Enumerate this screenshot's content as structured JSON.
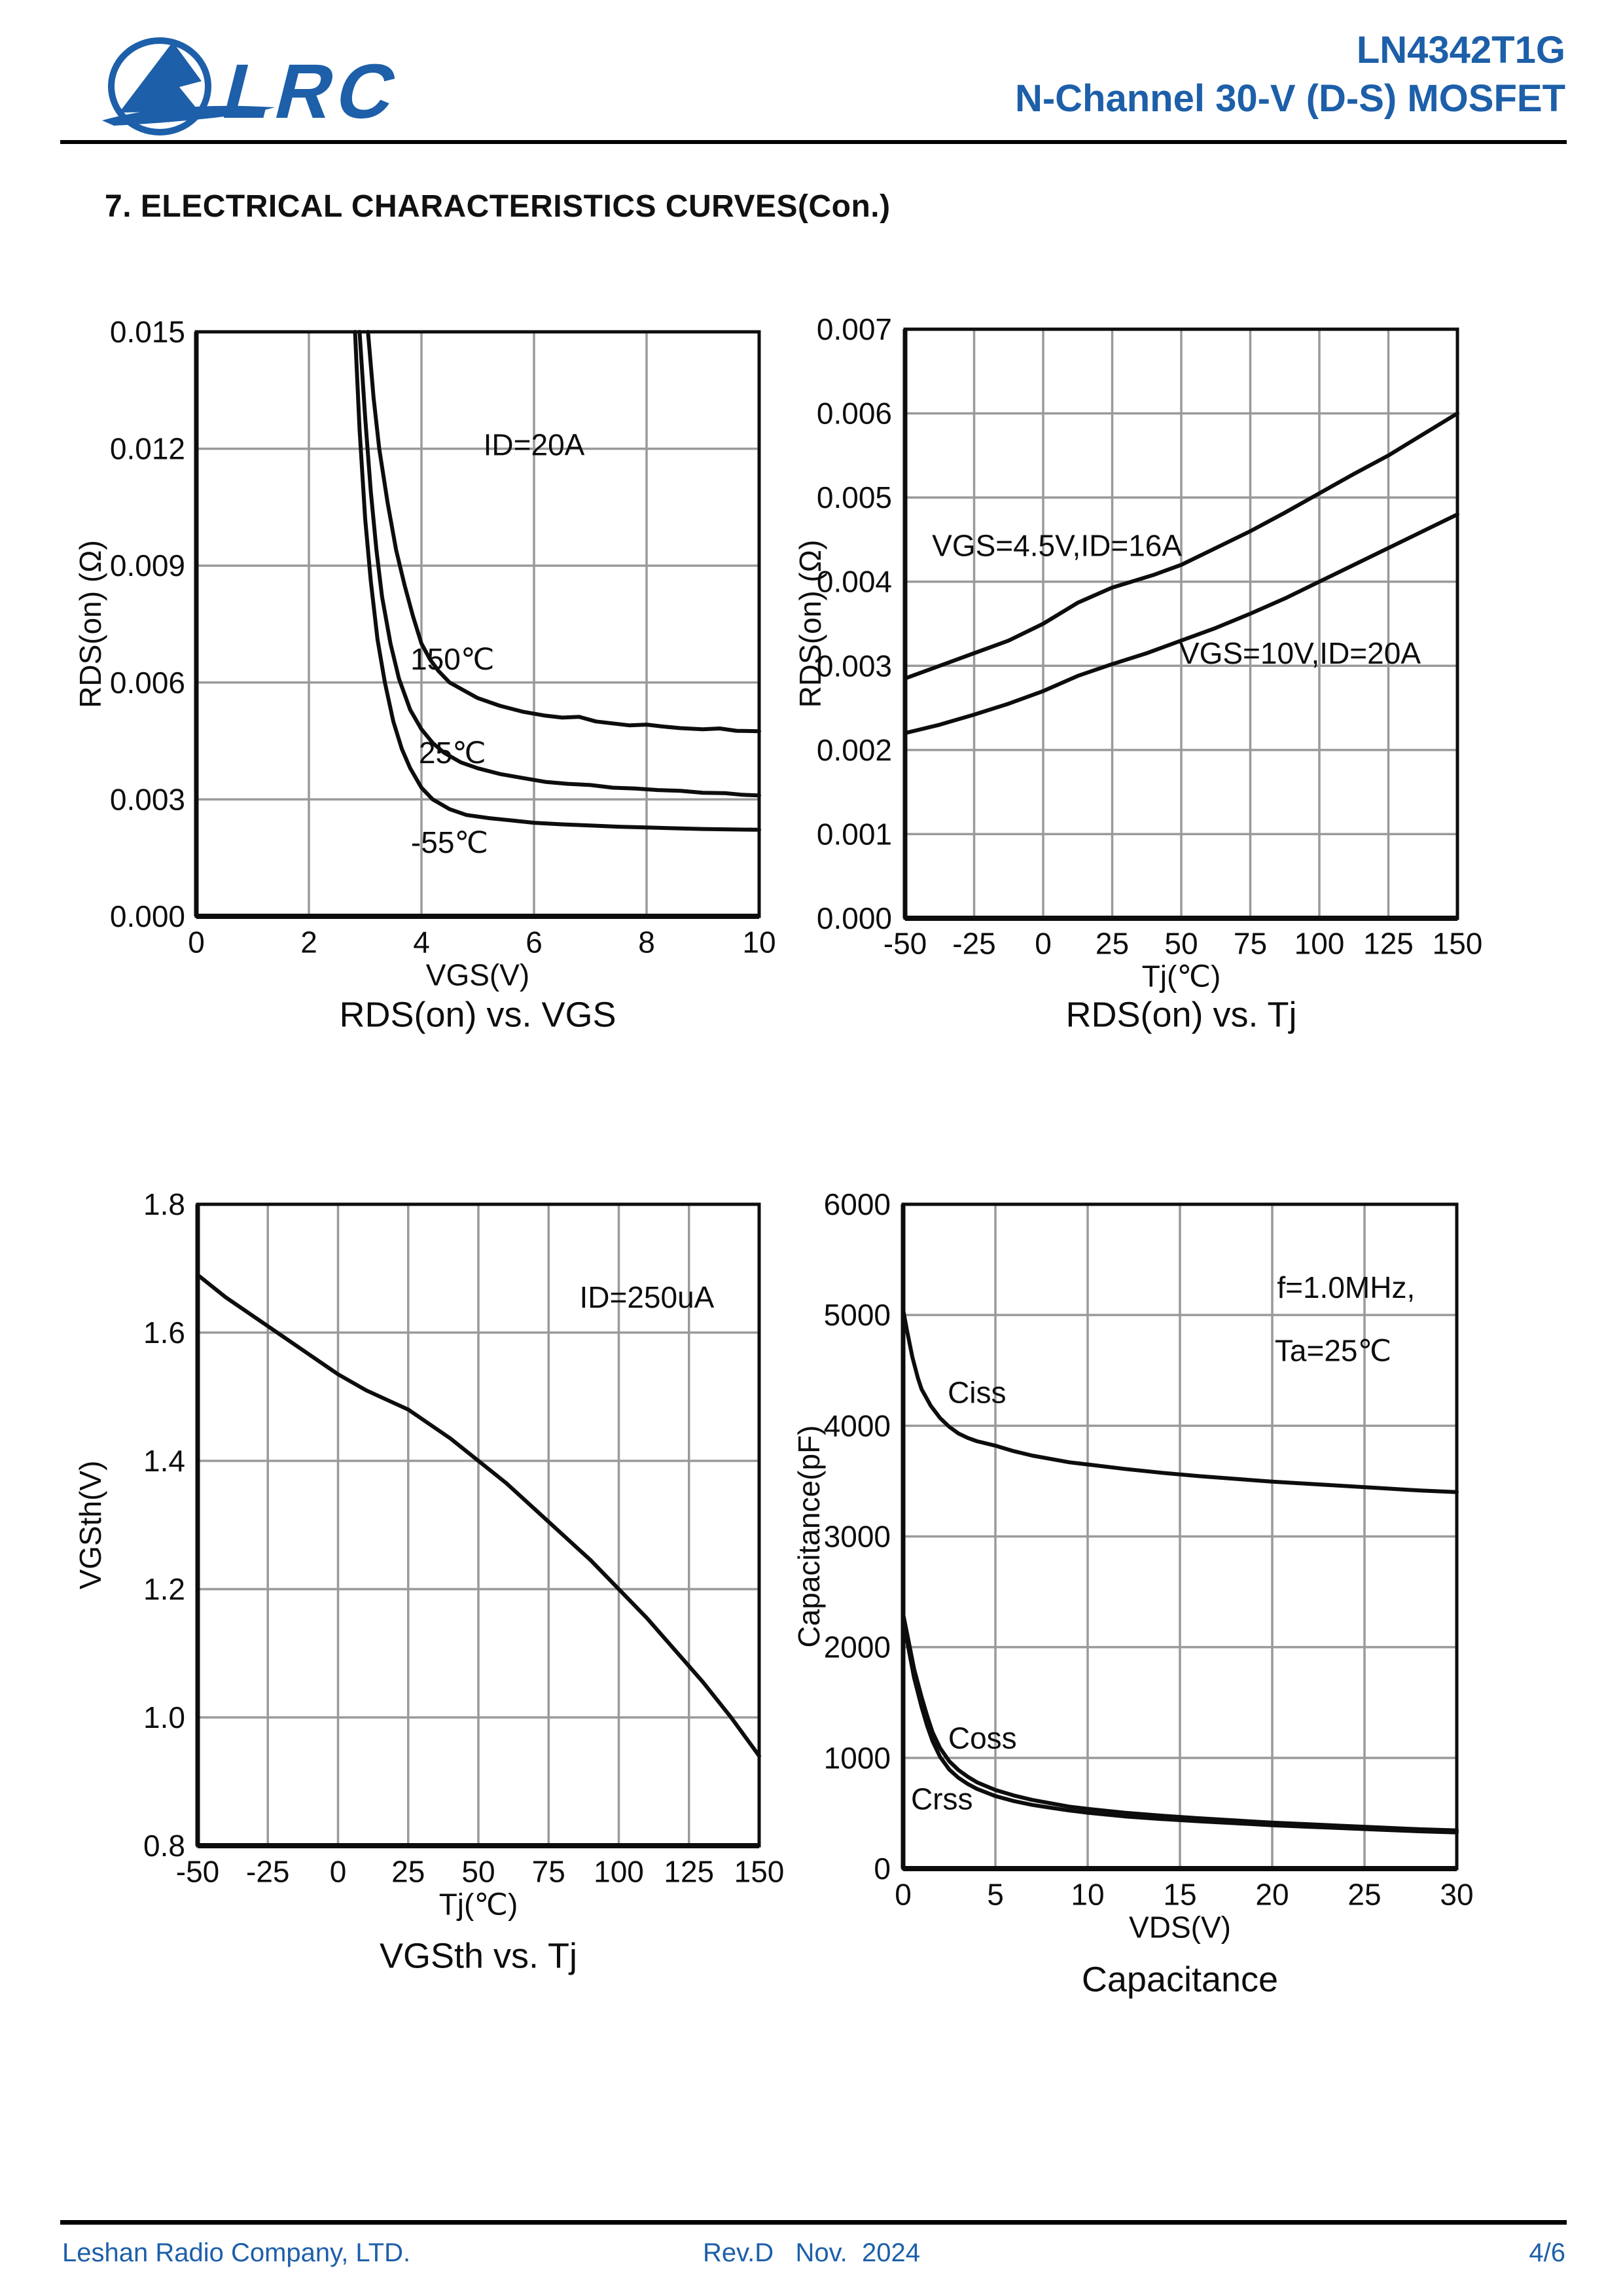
{
  "header": {
    "logo_text": "LRC",
    "part_number": "LN4342T1G",
    "subtitle": "N-Channel 30-V (D-S) MOSFET"
  },
  "section_title": "7. ELECTRICAL CHARACTERISTICS CURVES(Con.)",
  "footer": {
    "company": "Leshan Radio Company, LTD.",
    "revision": "Rev.D   Nov.  2024",
    "page_number": "4/6"
  },
  "colors": {
    "brand_blue": "#1d5fa9",
    "grid_gray": "#9a9a9a",
    "curve_black": "#0d0d0d"
  },
  "chart_data": [
    {
      "id": "rdson-vs-vgs",
      "type": "line",
      "title": "RDS(on) vs. VGS",
      "xlabel": "VGS(V)",
      "ylabel": "RDS(on) (Ω)",
      "xlim": [
        0,
        10
      ],
      "ylim": [
        0,
        0.015
      ],
      "xticks": [
        "0",
        "2",
        "4",
        "6",
        "8",
        "10"
      ],
      "yticks": [
        "0.000",
        "0.003",
        "0.006",
        "0.009",
        "0.012",
        "0.015"
      ],
      "grid": true,
      "annotations": [
        {
          "text": "ID=20A",
          "x": 6.0,
          "y": 0.0121
        },
        {
          "text": "150℃",
          "x": 4.55,
          "y": 0.0066
        },
        {
          "text": "25℃",
          "x": 4.55,
          "y": 0.0042
        },
        {
          "text": "-55℃",
          "x": 4.5,
          "y": 0.0019
        }
      ],
      "series": [
        {
          "name": "150C",
          "points": [
            [
              3.05,
              0.015
            ],
            [
              3.15,
              0.0133
            ],
            [
              3.25,
              0.012
            ],
            [
              3.4,
              0.0106
            ],
            [
              3.55,
              0.0094
            ],
            [
              3.7,
              0.0085
            ],
            [
              3.85,
              0.0077
            ],
            [
              4.0,
              0.007
            ],
            [
              4.15,
              0.0066
            ],
            [
              4.3,
              0.0063
            ],
            [
              4.5,
              0.006
            ],
            [
              4.75,
              0.0058
            ],
            [
              5.0,
              0.0056
            ],
            [
              5.4,
              0.0054
            ],
            [
              5.8,
              0.00525
            ],
            [
              6.2,
              0.00515
            ],
            [
              6.5,
              0.0051
            ],
            [
              6.8,
              0.00512
            ],
            [
              7.1,
              0.005
            ],
            [
              7.4,
              0.00495
            ],
            [
              7.7,
              0.0049
            ],
            [
              8.0,
              0.00492
            ],
            [
              8.3,
              0.00487
            ],
            [
              8.6,
              0.00483
            ],
            [
              9.0,
              0.0048
            ],
            [
              9.3,
              0.00482
            ],
            [
              9.6,
              0.00476
            ],
            [
              10,
              0.00475
            ]
          ]
        },
        {
          "name": "25C",
          "points": [
            [
              2.9,
              0.015
            ],
            [
              3.0,
              0.0128
            ],
            [
              3.1,
              0.0109
            ],
            [
              3.2,
              0.0094
            ],
            [
              3.3,
              0.0082
            ],
            [
              3.45,
              0.007
            ],
            [
              3.6,
              0.0061
            ],
            [
              3.8,
              0.0053
            ],
            [
              4.0,
              0.0048
            ],
            [
              4.2,
              0.00445
            ],
            [
              4.4,
              0.0042
            ],
            [
              4.7,
              0.00395
            ],
            [
              5.0,
              0.0038
            ],
            [
              5.4,
              0.00365
            ],
            [
              5.8,
              0.00355
            ],
            [
              6.2,
              0.00345
            ],
            [
              6.6,
              0.0034
            ],
            [
              7.0,
              0.00337
            ],
            [
              7.4,
              0.0033
            ],
            [
              7.8,
              0.00328
            ],
            [
              8.2,
              0.00324
            ],
            [
              8.6,
              0.00322
            ],
            [
              9.0,
              0.00317
            ],
            [
              9.4,
              0.00316
            ],
            [
              9.7,
              0.00312
            ],
            [
              10,
              0.0031
            ]
          ]
        },
        {
          "name": "-55C",
          "points": [
            [
              2.82,
              0.015
            ],
            [
              2.9,
              0.0125
            ],
            [
              3.0,
              0.0102
            ],
            [
              3.1,
              0.0086
            ],
            [
              3.22,
              0.0071
            ],
            [
              3.35,
              0.006
            ],
            [
              3.5,
              0.005
            ],
            [
              3.65,
              0.0043
            ],
            [
              3.8,
              0.0038
            ],
            [
              4.0,
              0.0033
            ],
            [
              4.2,
              0.003
            ],
            [
              4.5,
              0.00275
            ],
            [
              4.8,
              0.0026
            ],
            [
              5.2,
              0.00252
            ],
            [
              5.6,
              0.00246
            ],
            [
              6.0,
              0.0024
            ],
            [
              6.5,
              0.00236
            ],
            [
              7.0,
              0.00233
            ],
            [
              7.5,
              0.0023
            ],
            [
              8.0,
              0.00228
            ],
            [
              8.5,
              0.00226
            ],
            [
              9.0,
              0.00224
            ],
            [
              9.5,
              0.00223
            ],
            [
              10,
              0.00222
            ]
          ]
        }
      ]
    },
    {
      "id": "rdson-vs-tj",
      "type": "line",
      "title": "RDS(on) vs. Tj",
      "xlabel": "Tj(℃)",
      "ylabel": "RDS(on) (Ω)",
      "xlim": [
        -50,
        150
      ],
      "ylim": [
        0,
        0.007
      ],
      "xticks": [
        "-50",
        "-25",
        "0",
        "25",
        "50",
        "75",
        "100",
        "125",
        "150"
      ],
      "yticks": [
        "0.000",
        "0.001",
        "0.002",
        "0.003",
        "0.004",
        "0.005",
        "0.006",
        "0.007"
      ],
      "grid": true,
      "annotations": [
        {
          "text": "VGS=4.5V,ID=16A",
          "x": 5,
          "y": 0.00443
        },
        {
          "text": "VGS=10V,ID=20A",
          "x": 93,
          "y": 0.00315
        }
      ],
      "series": [
        {
          "name": "VGS=4.5V,ID=16A",
          "points": [
            [
              -50,
              0.00285
            ],
            [
              -37.5,
              0.003
            ],
            [
              -25,
              0.00315
            ],
            [
              -12.5,
              0.0033
            ],
            [
              0,
              0.0035
            ],
            [
              12.5,
              0.00375
            ],
            [
              25,
              0.00393
            ],
            [
              32,
              0.004
            ],
            [
              40,
              0.00408
            ],
            [
              50,
              0.0042
            ],
            [
              62.5,
              0.0044
            ],
            [
              75,
              0.0046
            ],
            [
              87.5,
              0.00482
            ],
            [
              100,
              0.00505
            ],
            [
              112.5,
              0.00528
            ],
            [
              125,
              0.0055
            ],
            [
              137.5,
              0.00575
            ],
            [
              150,
              0.006
            ]
          ]
        },
        {
          "name": "VGS=10V,ID=20A",
          "points": [
            [
              -50,
              0.0022
            ],
            [
              -37.5,
              0.0023
            ],
            [
              -25,
              0.00242
            ],
            [
              -12.5,
              0.00255
            ],
            [
              0,
              0.0027
            ],
            [
              12.5,
              0.00288
            ],
            [
              25,
              0.00302
            ],
            [
              37.5,
              0.00315
            ],
            [
              50,
              0.0033
            ],
            [
              62.5,
              0.00345
            ],
            [
              75,
              0.00362
            ],
            [
              87.5,
              0.0038
            ],
            [
              100,
              0.004
            ],
            [
              112.5,
              0.0042
            ],
            [
              125,
              0.0044
            ],
            [
              137.5,
              0.0046
            ],
            [
              150,
              0.0048
            ]
          ]
        }
      ]
    },
    {
      "id": "vgsth-vs-tj",
      "type": "line",
      "title": "VGSth vs. Tj",
      "xlabel": "Tj(℃)",
      "ylabel": "VGSth(V)",
      "xlim": [
        -50,
        150
      ],
      "ylim": [
        0.8,
        1.8
      ],
      "xticks": [
        "-50",
        "-25",
        "0",
        "25",
        "50",
        "75",
        "100",
        "125",
        "150"
      ],
      "yticks": [
        "0.8",
        "1.0",
        "1.2",
        "1.4",
        "1.6",
        "1.8"
      ],
      "grid": true,
      "annotations": [
        {
          "text": "ID=250uA",
          "x": 110,
          "y": 1.655
        }
      ],
      "series": [
        {
          "name": "VGSth",
          "points": [
            [
              -50,
              1.69
            ],
            [
              -40,
              1.655
            ],
            [
              -30,
              1.625
            ],
            [
              -25,
              1.61
            ],
            [
              -20,
              1.595
            ],
            [
              -10,
              1.565
            ],
            [
              0,
              1.535
            ],
            [
              10,
              1.51
            ],
            [
              20,
              1.49
            ],
            [
              25,
              1.48
            ],
            [
              30,
              1.465
            ],
            [
              40,
              1.435
            ],
            [
              50,
              1.4
            ],
            [
              60,
              1.365
            ],
            [
              70,
              1.325
            ],
            [
              75,
              1.305
            ],
            [
              80,
              1.285
            ],
            [
              90,
              1.245
            ],
            [
              100,
              1.2
            ],
            [
              110,
              1.155
            ],
            [
              120,
              1.105
            ],
            [
              125,
              1.08
            ],
            [
              130,
              1.055
            ],
            [
              140,
              1.0
            ],
            [
              150,
              0.94
            ]
          ]
        }
      ]
    },
    {
      "id": "capacitance",
      "type": "line",
      "title": "Capacitance",
      "xlabel": "VDS(V)",
      "ylabel": "Capacitance(pF)",
      "xlim": [
        0,
        30
      ],
      "ylim": [
        0,
        6000
      ],
      "xticks": [
        "0",
        "5",
        "10",
        "15",
        "20",
        "25",
        "30"
      ],
      "yticks": [
        "0",
        "1000",
        "2000",
        "3000",
        "4000",
        "5000",
        "6000"
      ],
      "grid": true,
      "annotations": [
        {
          "text": "f=1.0MHz,",
          "x": 24,
          "y": 5250
        },
        {
          "text": "Ta=25℃",
          "x": 23.3,
          "y": 4680
        },
        {
          "text": "Ciss",
          "x": 4.0,
          "y": 4300
        },
        {
          "text": "Coss",
          "x": 4.3,
          "y": 1180
        },
        {
          "text": "Crss",
          "x": 2.1,
          "y": 630
        }
      ],
      "series": [
        {
          "name": "Ciss",
          "points": [
            [
              0,
              5050
            ],
            [
              0.2,
              4870
            ],
            [
              0.5,
              4620
            ],
            [
              0.8,
              4430
            ],
            [
              1,
              4330
            ],
            [
              1.5,
              4180
            ],
            [
              2,
              4070
            ],
            [
              2.5,
              3990
            ],
            [
              3,
              3930
            ],
            [
              3.5,
              3890
            ],
            [
              4,
              3860
            ],
            [
              5,
              3820
            ],
            [
              6,
              3770
            ],
            [
              7,
              3730
            ],
            [
              8,
              3700
            ],
            [
              9,
              3670
            ],
            [
              10,
              3650
            ],
            [
              12,
              3610
            ],
            [
              14,
              3575
            ],
            [
              16,
              3545
            ],
            [
              18,
              3520
            ],
            [
              20,
              3495
            ],
            [
              22,
              3475
            ],
            [
              24,
              3455
            ],
            [
              26,
              3435
            ],
            [
              28,
              3415
            ],
            [
              30,
              3400
            ]
          ]
        },
        {
          "name": "Coss",
          "points": [
            [
              0,
              2300
            ],
            [
              0.3,
              2050
            ],
            [
              0.6,
              1800
            ],
            [
              1,
              1550
            ],
            [
              1.3,
              1380
            ],
            [
              1.6,
              1230
            ],
            [
              2,
              1090
            ],
            [
              2.5,
              970
            ],
            [
              3,
              890
            ],
            [
              3.5,
              830
            ],
            [
              4,
              780
            ],
            [
              5,
              710
            ],
            [
              6,
              660
            ],
            [
              7,
              620
            ],
            [
              8,
              590
            ],
            [
              9,
              560
            ],
            [
              10,
              540
            ],
            [
              12,
              505
            ],
            [
              14,
              478
            ],
            [
              16,
              455
            ],
            [
              18,
              435
            ],
            [
              20,
              415
            ],
            [
              22,
              400
            ],
            [
              24,
              385
            ],
            [
              26,
              370
            ],
            [
              28,
              355
            ],
            [
              30,
              345
            ]
          ]
        },
        {
          "name": "Crss",
          "points": [
            [
              0,
              2250
            ],
            [
              0.3,
              1980
            ],
            [
              0.6,
              1720
            ],
            [
              1,
              1460
            ],
            [
              1.3,
              1290
            ],
            [
              1.6,
              1150
            ],
            [
              2,
              1010
            ],
            [
              2.5,
              895
            ],
            [
              3,
              820
            ],
            [
              3.5,
              765
            ],
            [
              4,
              720
            ],
            [
              5,
              655
            ],
            [
              6,
              610
            ],
            [
              7,
              575
            ],
            [
              8,
              550
            ],
            [
              9,
              525
            ],
            [
              10,
              505
            ],
            [
              12,
              472
            ],
            [
              14,
              448
            ],
            [
              16,
              428
            ],
            [
              18,
              410
            ],
            [
              20,
              392
            ],
            [
              22,
              378
            ],
            [
              24,
              364
            ],
            [
              26,
              350
            ],
            [
              28,
              337
            ],
            [
              30,
              327
            ]
          ]
        }
      ]
    }
  ]
}
